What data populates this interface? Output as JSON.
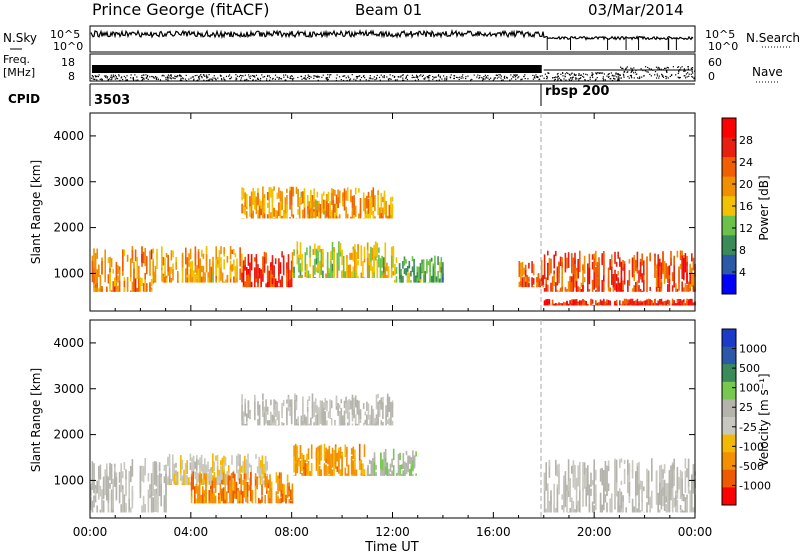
{
  "header": {
    "station": "Prince George (fitACF)",
    "beam": "Beam 01",
    "date": "03/Mar/2014"
  },
  "left_labels": {
    "nsky": "N.Sky",
    "freq": "Freq.",
    "mhz": "[MHz]",
    "cpid": "CPID"
  },
  "right_labels": {
    "nsearch": "N.Search",
    "nave": "Nave"
  },
  "noise_panel": {
    "left_ticks": [
      "10^5",
      "10^0"
    ],
    "right_ticks": [
      "10^5",
      "10^0"
    ]
  },
  "freq_panel": {
    "left_ticks": [
      "18",
      "8"
    ],
    "right_ticks": [
      "60",
      "0"
    ]
  },
  "cpid_panel": {
    "segments": [
      "3503",
      "rbsp 200"
    ]
  },
  "x_axis": {
    "label": "Time UT",
    "ticks": [
      "00:00",
      "04:00",
      "08:00",
      "12:00",
      "16:00",
      "20:00",
      "00:00"
    ]
  },
  "power_panel": {
    "ylabel": "Slant Range [km]",
    "y_ticks": [
      "1000",
      "2000",
      "3000",
      "4000"
    ],
    "colorbar_label": "Power [dB]",
    "colorbar_ticks": [
      "28",
      "24",
      "20",
      "16",
      "12",
      "8",
      "4"
    ]
  },
  "velocity_panel": {
    "ylabel": "Slant Range [km]",
    "y_ticks": [
      "1000",
      "2000",
      "3000",
      "4000"
    ],
    "colorbar_label": "Velocity [m s⁻¹]",
    "colorbar_ticks": [
      "1000",
      "500",
      "100",
      "25",
      "-25",
      "-100",
      "-500",
      "-1000"
    ]
  },
  "colors": {
    "power_scale": [
      "#0000ff",
      "#2c58a8",
      "#3a8a5a",
      "#6ac24a",
      "#f2c200",
      "#f09000",
      "#f06000",
      "#e82010",
      "#ff0000"
    ],
    "velocity_scale": [
      "#ff0000",
      "#ee5a00",
      "#f49000",
      "#f4b800",
      "#c8c8c0",
      "#b4b4ac",
      "#78c850",
      "#3a8a5a",
      "#2c58a8",
      "#1a3cc8"
    ]
  },
  "chart_data": [
    {
      "type": "heatmap",
      "name": "power",
      "xlabel": "Time UT",
      "ylabel": "Slant Range [km]",
      "xlim": [
        0,
        24
      ],
      "ylim": [
        180,
        4500
      ],
      "x_tick_labels": [
        "00:00",
        "04:00",
        "08:00",
        "12:00",
        "16:00",
        "20:00",
        "00:00"
      ],
      "colorbar": {
        "label": "Power [dB]",
        "range": [
          0,
          30
        ]
      },
      "regions": [
        {
          "t": [
            0.0,
            2.5
          ],
          "r": [
            600,
            1600
          ],
          "value": 20
        },
        {
          "t": [
            2.5,
            6.0
          ],
          "r": [
            800,
            1600
          ],
          "value": 18
        },
        {
          "t": [
            6.0,
            8.0
          ],
          "r": [
            700,
            1500
          ],
          "value": 26
        },
        {
          "t": [
            8.0,
            12.0
          ],
          "r": [
            900,
            1700
          ],
          "value": 14
        },
        {
          "t": [
            12.0,
            14.0
          ],
          "r": [
            800,
            1400
          ],
          "value": 10
        },
        {
          "t": [
            17.0,
            18.0
          ],
          "r": [
            700,
            1300
          ],
          "value": 22
        },
        {
          "t": [
            18.0,
            24.0
          ],
          "r": [
            600,
            1500
          ],
          "value": 24
        },
        {
          "t": [
            18.0,
            24.0
          ],
          "r": [
            300,
            450
          ],
          "value": 26
        },
        {
          "t": [
            6.0,
            12.0
          ],
          "r": [
            2200,
            2900
          ],
          "value": 18
        }
      ]
    },
    {
      "type": "heatmap",
      "name": "velocity",
      "xlabel": "Time UT",
      "ylabel": "Slant Range [km]",
      "xlim": [
        0,
        24
      ],
      "ylim": [
        180,
        4500
      ],
      "x_tick_labels": [
        "00:00",
        "04:00",
        "08:00",
        "12:00",
        "16:00",
        "20:00",
        "00:00"
      ],
      "colorbar": {
        "label": "Velocity [m s⁻¹]",
        "range": [
          -1000,
          1000
        ]
      },
      "regions": [
        {
          "t": [
            0.0,
            3.0
          ],
          "r": [
            300,
            1500
          ],
          "value": 0
        },
        {
          "t": [
            3.0,
            7.0
          ],
          "r": [
            900,
            1600
          ],
          "value": -150
        },
        {
          "t": [
            4.0,
            8.0
          ],
          "r": [
            500,
            1200
          ],
          "value": -600
        },
        {
          "t": [
            8.0,
            11.0
          ],
          "r": [
            1100,
            1800
          ],
          "value": -500
        },
        {
          "t": [
            11.0,
            13.0
          ],
          "r": [
            1100,
            1700
          ],
          "value": 200
        },
        {
          "t": [
            18.0,
            24.0
          ],
          "r": [
            300,
            1500
          ],
          "value": 0
        },
        {
          "t": [
            6.0,
            12.0
          ],
          "r": [
            2200,
            2900
          ],
          "value": 0
        }
      ]
    }
  ]
}
